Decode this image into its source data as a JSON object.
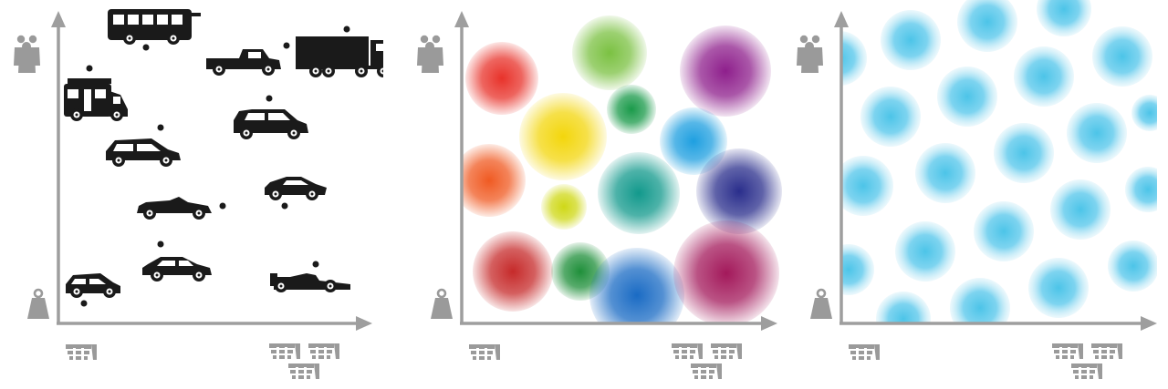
{
  "colors": {
    "axis": "#9e9e9e",
    "icon_gray": "#9a9a9a",
    "vehicle": "#1a1a1a",
    "uniform_blob": "#4cc4e8"
  },
  "icons": {
    "y_top": "people-group-icon",
    "y_bottom": "weight-icon",
    "x_left": "single-engine-icon",
    "x_right": "multiple-engines-icon"
  },
  "panels": [
    {
      "id": "vehicles",
      "vehicles": [
        {
          "type": "bus"
        },
        {
          "type": "pickup-truck"
        },
        {
          "type": "semi-truck"
        },
        {
          "type": "motorhome"
        },
        {
          "type": "suv"
        },
        {
          "type": "minivan"
        },
        {
          "type": "sports-car"
        },
        {
          "type": "convertible"
        },
        {
          "type": "sedan"
        },
        {
          "type": "hatchback"
        },
        {
          "type": "formula-car"
        }
      ]
    },
    {
      "id": "colored-clusters",
      "blobs": [
        {
          "color": "#e8322a"
        },
        {
          "color": "#7bc142"
        },
        {
          "color": "#8e1f8c"
        },
        {
          "color": "#f3d60c"
        },
        {
          "color": "#1a9a4a"
        },
        {
          "color": "#1e9fe0"
        },
        {
          "color": "#f05a22"
        },
        {
          "color": "#cfd817"
        },
        {
          "color": "#12998c"
        },
        {
          "color": "#2a2e8c"
        },
        {
          "color": "#c62a2a"
        },
        {
          "color": "#1f8f3a"
        },
        {
          "color": "#1a6bc4"
        },
        {
          "color": "#a3195b"
        }
      ]
    },
    {
      "id": "uniform-distribution"
    }
  ]
}
